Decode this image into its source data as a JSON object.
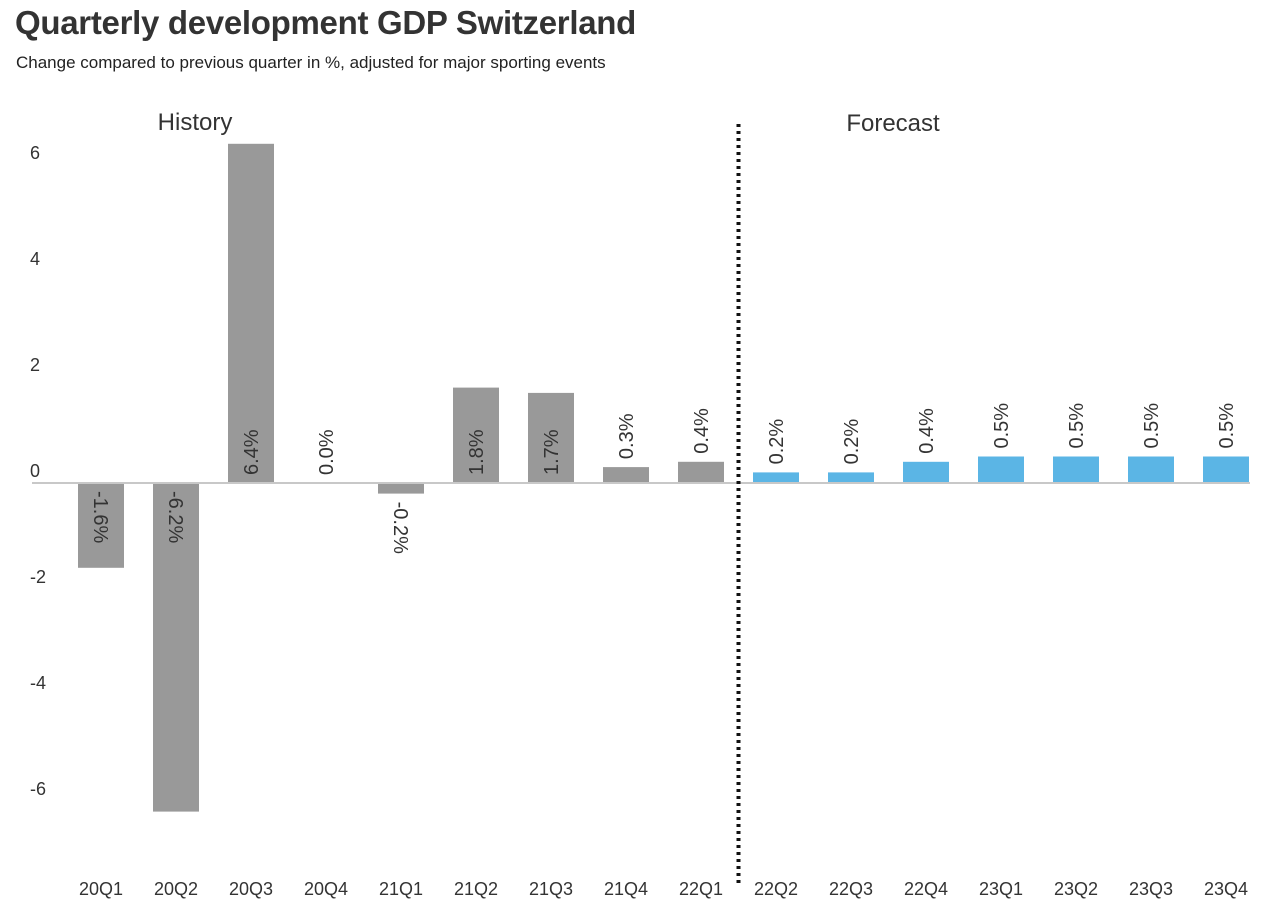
{
  "title": "Quarterly development GDP Switzerland",
  "subtitle": "Change compared to previous quarter in %, adjusted for major sporting events",
  "colors": {
    "history": "#999999",
    "forecast": "#5bb5e5",
    "axis": "#c8c8c8",
    "divider": "#111111"
  },
  "chart_data": {
    "type": "bar",
    "title": "Quarterly development GDP Switzerland",
    "subtitle": "Change compared to previous quarter in %, adjusted for major sporting events",
    "regions": [
      "History",
      "Forecast"
    ],
    "categories": [
      "20Q1",
      "20Q2",
      "20Q3",
      "20Q4",
      "21Q1",
      "21Q2",
      "21Q3",
      "21Q4",
      "22Q1",
      "22Q2",
      "22Q3",
      "22Q4",
      "23Q1",
      "23Q2",
      "23Q3",
      "23Q4"
    ],
    "values": [
      -1.6,
      -6.2,
      6.4,
      0.0,
      -0.2,
      1.8,
      1.7,
      0.3,
      0.4,
      0.2,
      0.2,
      0.4,
      0.5,
      0.5,
      0.5,
      0.5
    ],
    "labels": [
      "-1.6%",
      "-6.2%",
      "6.4%",
      "0.0%",
      "-0.2%",
      "1.8%",
      "1.7%",
      "0.3%",
      "0.4%",
      "0.2%",
      "0.2%",
      "0.4%",
      "0.5%",
      "0.5%",
      "0.5%",
      "0.5%"
    ],
    "segment": [
      "History",
      "History",
      "History",
      "History",
      "History",
      "History",
      "History",
      "History",
      "History",
      "Forecast",
      "Forecast",
      "Forecast",
      "Forecast",
      "Forecast",
      "Forecast",
      "Forecast"
    ],
    "yticks": [
      "6",
      "4",
      "2",
      "0",
      "-2",
      "-4",
      "-6"
    ],
    "ytick_values": [
      6,
      4,
      2,
      0,
      -2,
      -4,
      -6
    ],
    "ylim": [
      -7.5,
      6.5
    ],
    "grid": false,
    "legend": "none"
  }
}
